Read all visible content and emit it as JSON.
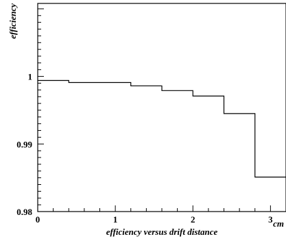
{
  "chart_data": {
    "type": "line",
    "step": true,
    "title": "",
    "xlabel": "efficiency versus drift distance",
    "xunit": "cm",
    "ylabel": "efficiency",
    "xlim": [
      0,
      3.2
    ],
    "ylim": [
      0.98,
      1.0108
    ],
    "x_ticks": [
      0,
      1,
      2,
      3
    ],
    "x_tick_labels": [
      "0",
      "1",
      "2",
      "3"
    ],
    "y_ticks": [
      0.98,
      0.99,
      1.0
    ],
    "y_tick_labels": [
      "0.98",
      "0.99",
      "1"
    ],
    "bin_edges": [
      0,
      0.4,
      0.8,
      1.2,
      1.6,
      2.0,
      2.4,
      2.8,
      3.2
    ],
    "values": [
      0.9994,
      0.9991,
      0.9991,
      0.9986,
      0.9979,
      0.9971,
      0.9945,
      0.9851
    ],
    "grid": false,
    "legend": "none",
    "line_color": "#000000"
  }
}
